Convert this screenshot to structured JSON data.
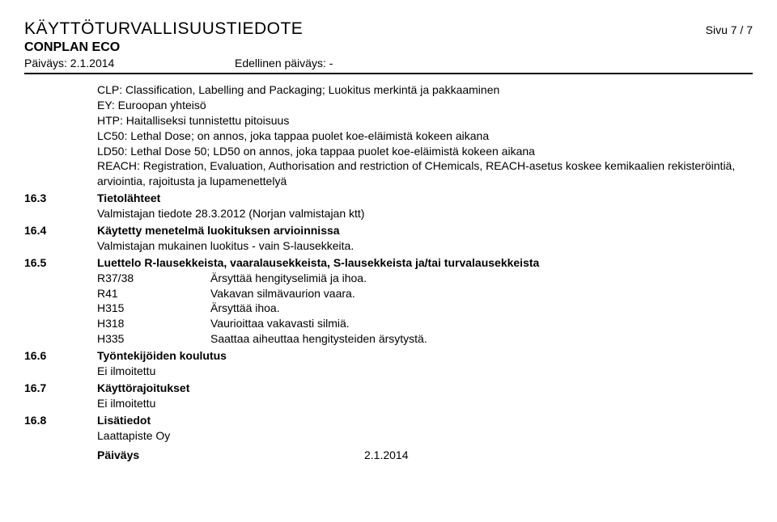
{
  "header": {
    "title": "KÄYTTÖTURVALLISUUSTIEDOTE",
    "page": "Sivu 7 / 7",
    "product": "CONPLAN ECO",
    "date_label": "Päiväys: 2.1.2014",
    "prev_date_label": "Edellinen päiväys: -"
  },
  "glossary": [
    "CLP: Classification, Labelling and Packaging; Luokitus merkintä ja pakkaaminen",
    "EY: Euroopan yhteisö",
    "HTP: Haitalliseksi tunnistettu pitoisuus",
    "LC50: Lethal Dose; on annos, joka tappaa puolet koe-eläimistä kokeen aikana",
    "LD50: Lethal Dose 50; LD50 on annos, joka tappaa puolet koe-eläimistä kokeen aikana",
    "REACH: Registration, Evaluation, Authorisation and restriction of CHemicals, REACH-asetus koskee kemikaalien rekisteröintiä, arviointia, rajoitusta ja lupamenettelyä"
  ],
  "s163": {
    "num": "16.3",
    "title": "Tietolähteet",
    "body": "Valmistajan tiedote 28.3.2012  (Norjan valmistajan ktt)"
  },
  "s164": {
    "num": "16.4",
    "title": "Käytetty menetelmä luokituksen arvioinnissa",
    "body": "Valmistajan mukainen luokitus - vain S-lausekkeita."
  },
  "s165": {
    "num": "16.5",
    "title": "Luettelo R-lausekkeista, vaaralausekkeista, S-lausekkeista ja/tai turvalausekkeista",
    "rows": [
      {
        "code": "R37/38",
        "text": "Ärsyttää hengityselimiä ja ihoa."
      },
      {
        "code": "R41",
        "text": "Vakavan silmävaurion vaara."
      },
      {
        "code": "H315",
        "text": "Ärsyttää ihoa."
      },
      {
        "code": "H318",
        "text": "Vaurioittaa vakavasti silmiä."
      },
      {
        "code": "H335",
        "text": "Saattaa aiheuttaa hengitysteiden ärsytystä."
      }
    ]
  },
  "s166": {
    "num": "16.6",
    "title": "Työntekijöiden koulutus",
    "body": "Ei ilmoitettu"
  },
  "s167": {
    "num": "16.7",
    "title": "Käyttörajoitukset",
    "body": "Ei ilmoitettu"
  },
  "s168": {
    "num": "16.8",
    "title": "Lisätiedot",
    "body": "Laattapiste Oy"
  },
  "footer": {
    "label": "Päiväys",
    "value": "2.1.2014"
  }
}
